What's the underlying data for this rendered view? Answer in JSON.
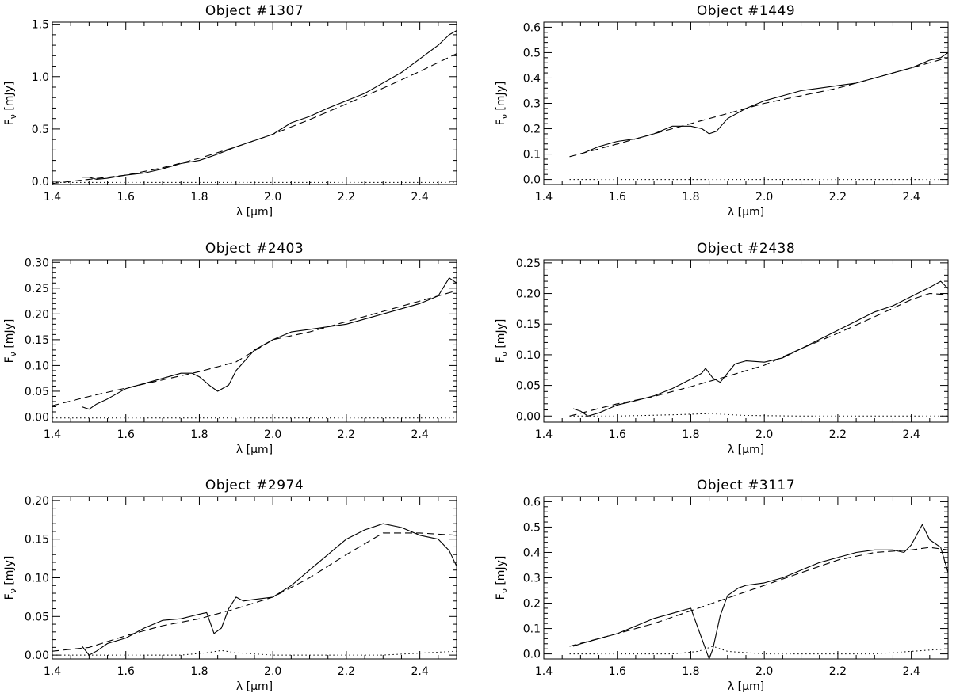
{
  "chart_data": [
    {
      "type": "line",
      "title": "Object #1307",
      "xlabel": "λ [μm]",
      "ylabel": "F_ν [mJy]",
      "xlim": [
        1.4,
        2.5
      ],
      "ylim": [
        -0.03,
        1.52
      ],
      "xticks": [
        "1.4",
        "1.6",
        "1.8",
        "2.0",
        "2.2",
        "2.4"
      ],
      "yticks": [
        "0.0",
        "0.5",
        "1.0",
        "1.5"
      ],
      "series": [
        {
          "style": "solid",
          "x": [
            1.48,
            1.5,
            1.52,
            1.55,
            1.6,
            1.65,
            1.7,
            1.75,
            1.8,
            1.85,
            1.9,
            1.95,
            2.0,
            2.05,
            2.1,
            2.15,
            2.2,
            2.25,
            2.3,
            2.35,
            2.4,
            2.45,
            2.48,
            2.5
          ],
          "y": [
            0.04,
            0.04,
            0.02,
            0.03,
            0.06,
            0.08,
            0.12,
            0.17,
            0.2,
            0.26,
            0.33,
            0.39,
            0.45,
            0.56,
            0.62,
            0.7,
            0.77,
            0.84,
            0.94,
            1.04,
            1.17,
            1.3,
            1.4,
            1.44
          ]
        },
        {
          "style": "dashed",
          "x": [
            1.4,
            1.5,
            1.6,
            1.7,
            1.8,
            1.9,
            2.0,
            2.1,
            2.2,
            2.3,
            2.4,
            2.5
          ],
          "y": [
            -0.02,
            0.02,
            0.06,
            0.13,
            0.22,
            0.33,
            0.45,
            0.59,
            0.74,
            0.89,
            1.05,
            1.22
          ]
        },
        {
          "style": "dotted",
          "x": [
            1.4,
            2.5
          ],
          "y": [
            -0.01,
            -0.01
          ]
        }
      ]
    },
    {
      "type": "line",
      "title": "Object #1449",
      "xlabel": "λ [μm]",
      "ylabel": "F_ν [mJy]",
      "xlim": [
        1.4,
        2.5
      ],
      "ylim": [
        -0.02,
        0.62
      ],
      "xticks": [
        "1.4",
        "1.6",
        "1.8",
        "2.0",
        "2.2",
        "2.4"
      ],
      "yticks": [
        "0.0",
        "0.1",
        "0.2",
        "0.3",
        "0.4",
        "0.5",
        "0.6"
      ],
      "series": [
        {
          "style": "solid",
          "x": [
            1.5,
            1.55,
            1.6,
            1.65,
            1.7,
            1.75,
            1.8,
            1.83,
            1.85,
            1.87,
            1.9,
            1.95,
            2.0,
            2.05,
            2.1,
            2.15,
            2.2,
            2.25,
            2.3,
            2.35,
            2.4,
            2.45,
            2.48,
            2.5
          ],
          "y": [
            0.1,
            0.13,
            0.15,
            0.16,
            0.18,
            0.21,
            0.21,
            0.2,
            0.18,
            0.19,
            0.24,
            0.28,
            0.31,
            0.33,
            0.35,
            0.36,
            0.37,
            0.38,
            0.4,
            0.42,
            0.44,
            0.47,
            0.48,
            0.5
          ]
        },
        {
          "style": "dashed",
          "x": [
            1.47,
            1.6,
            1.7,
            1.8,
            1.9,
            2.0,
            2.1,
            2.2,
            2.3,
            2.4,
            2.5
          ],
          "y": [
            0.09,
            0.14,
            0.18,
            0.22,
            0.26,
            0.3,
            0.33,
            0.36,
            0.4,
            0.44,
            0.48
          ]
        },
        {
          "style": "dotted",
          "x": [
            1.47,
            2.5
          ],
          "y": [
            0.0,
            0.0
          ]
        }
      ]
    },
    {
      "type": "line",
      "title": "Object #2403",
      "xlabel": "λ [μm]",
      "ylabel": "F_ν [mJy]",
      "xlim": [
        1.4,
        2.5
      ],
      "ylim": [
        -0.01,
        0.305
      ],
      "xticks": [
        "1.4",
        "1.6",
        "1.8",
        "2.0",
        "2.2",
        "2.4"
      ],
      "yticks": [
        "0.00",
        "0.05",
        "0.10",
        "0.15",
        "0.20",
        "0.25",
        "0.30"
      ],
      "series": [
        {
          "style": "solid",
          "x": [
            1.48,
            1.5,
            1.52,
            1.55,
            1.6,
            1.65,
            1.7,
            1.75,
            1.78,
            1.8,
            1.83,
            1.85,
            1.88,
            1.9,
            1.95,
            2.0,
            2.05,
            2.1,
            2.15,
            2.2,
            2.25,
            2.3,
            2.35,
            2.4,
            2.45,
            2.48,
            2.5
          ],
          "y": [
            0.02,
            0.015,
            0.025,
            0.035,
            0.055,
            0.065,
            0.075,
            0.085,
            0.085,
            0.078,
            0.06,
            0.05,
            0.062,
            0.09,
            0.13,
            0.15,
            0.165,
            0.17,
            0.175,
            0.18,
            0.19,
            0.2,
            0.21,
            0.22,
            0.235,
            0.27,
            0.26
          ]
        },
        {
          "style": "dashed",
          "x": [
            1.4,
            1.5,
            1.6,
            1.7,
            1.8,
            1.9,
            2.0,
            2.1,
            2.2,
            2.3,
            2.4,
            2.5
          ],
          "y": [
            0.022,
            0.04,
            0.056,
            0.072,
            0.088,
            0.107,
            0.15,
            0.165,
            0.185,
            0.205,
            0.225,
            0.245
          ]
        },
        {
          "style": "dotted",
          "x": [
            1.4,
            2.5
          ],
          "y": [
            -0.002,
            -0.002
          ]
        }
      ]
    },
    {
      "type": "line",
      "title": "Object #2438",
      "xlabel": "λ [μm]",
      "ylabel": "F_ν [mJy]",
      "xlim": [
        1.4,
        2.5
      ],
      "ylim": [
        -0.01,
        0.255
      ],
      "xticks": [
        "1.4",
        "1.6",
        "1.8",
        "2.0",
        "2.2",
        "2.4"
      ],
      "yticks": [
        "0.00",
        "0.05",
        "0.10",
        "0.15",
        "0.20",
        "0.25"
      ],
      "series": [
        {
          "style": "solid",
          "x": [
            1.48,
            1.5,
            1.52,
            1.55,
            1.6,
            1.65,
            1.7,
            1.75,
            1.8,
            1.83,
            1.84,
            1.86,
            1.88,
            1.9,
            1.92,
            1.95,
            2.0,
            2.05,
            2.1,
            2.15,
            2.2,
            2.25,
            2.3,
            2.35,
            2.4,
            2.45,
            2.48,
            2.5
          ],
          "y": [
            0.012,
            0.008,
            0.0,
            0.005,
            0.018,
            0.025,
            0.033,
            0.045,
            0.06,
            0.07,
            0.078,
            0.062,
            0.055,
            0.07,
            0.085,
            0.09,
            0.088,
            0.095,
            0.11,
            0.125,
            0.14,
            0.155,
            0.17,
            0.18,
            0.195,
            0.21,
            0.22,
            0.208
          ]
        },
        {
          "style": "dashed",
          "x": [
            1.47,
            1.6,
            1.7,
            1.8,
            1.9,
            2.0,
            2.1,
            2.2,
            2.3,
            2.4,
            2.45,
            2.5
          ],
          "y": [
            0.0,
            0.02,
            0.032,
            0.048,
            0.065,
            0.083,
            0.11,
            0.135,
            0.162,
            0.19,
            0.2,
            0.198
          ]
        },
        {
          "style": "dotted",
          "x": [
            1.47,
            1.6,
            1.75,
            1.85,
            1.95,
            2.1,
            2.3,
            2.5
          ],
          "y": [
            0.0,
            0.0,
            0.002,
            0.004,
            0.001,
            0.0,
            0.0,
            0.0
          ]
        }
      ]
    },
    {
      "type": "line",
      "title": "Object #2974",
      "xlabel": "λ [μm]",
      "ylabel": "F_ν [mJy]",
      "xlim": [
        1.4,
        2.5
      ],
      "ylim": [
        -0.005,
        0.205
      ],
      "xticks": [
        "1.4",
        "1.6",
        "1.8",
        "2.0",
        "2.2",
        "2.4"
      ],
      "yticks": [
        "0.00",
        "0.05",
        "0.10",
        "0.15",
        "0.20"
      ],
      "series": [
        {
          "style": "solid",
          "x": [
            1.48,
            1.5,
            1.52,
            1.55,
            1.6,
            1.65,
            1.7,
            1.75,
            1.8,
            1.82,
            1.84,
            1.86,
            1.88,
            1.9,
            1.92,
            1.95,
            2.0,
            2.05,
            2.1,
            2.15,
            2.2,
            2.25,
            2.3,
            2.35,
            2.4,
            2.45,
            2.48,
            2.5
          ],
          "y": [
            0.012,
            0.0,
            0.005,
            0.015,
            0.022,
            0.035,
            0.045,
            0.047,
            0.053,
            0.055,
            0.028,
            0.035,
            0.06,
            0.075,
            0.07,
            0.072,
            0.075,
            0.09,
            0.11,
            0.13,
            0.15,
            0.162,
            0.17,
            0.165,
            0.155,
            0.15,
            0.135,
            0.115
          ]
        },
        {
          "style": "dashed",
          "x": [
            1.4,
            1.5,
            1.6,
            1.7,
            1.8,
            1.9,
            2.0,
            2.1,
            2.2,
            2.3,
            2.4,
            2.5
          ],
          "y": [
            0.005,
            0.01,
            0.025,
            0.038,
            0.047,
            0.06,
            0.075,
            0.1,
            0.13,
            0.158,
            0.158,
            0.155
          ]
        },
        {
          "style": "dotted",
          "x": [
            1.4,
            1.75,
            1.82,
            1.86,
            1.9,
            2.0,
            2.3,
            2.5
          ],
          "y": [
            0.0,
            0.0,
            0.003,
            0.006,
            0.003,
            0.0,
            0.0,
            0.005
          ]
        }
      ]
    },
    {
      "type": "line",
      "title": "Object #3117",
      "xlabel": "λ [μm]",
      "ylabel": "F_ν [mJy]",
      "xlim": [
        1.4,
        2.5
      ],
      "ylim": [
        -0.02,
        0.62
      ],
      "xticks": [
        "1.4",
        "1.6",
        "1.8",
        "2.0",
        "2.2",
        "2.4"
      ],
      "yticks": [
        "0.0",
        "0.1",
        "0.2",
        "0.3",
        "0.4",
        "0.5",
        "0.6"
      ],
      "series": [
        {
          "style": "solid",
          "x": [
            1.48,
            1.5,
            1.55,
            1.6,
            1.65,
            1.7,
            1.75,
            1.8,
            1.82,
            1.84,
            1.85,
            1.86,
            1.88,
            1.9,
            1.93,
            1.95,
            2.0,
            2.05,
            2.1,
            2.15,
            2.2,
            2.25,
            2.3,
            2.35,
            2.38,
            2.4,
            2.43,
            2.45,
            2.48,
            2.5
          ],
          "y": [
            0.03,
            0.04,
            0.06,
            0.08,
            0.11,
            0.14,
            0.16,
            0.18,
            0.1,
            0.02,
            -0.02,
            0.02,
            0.15,
            0.23,
            0.26,
            0.27,
            0.28,
            0.3,
            0.33,
            0.36,
            0.38,
            0.4,
            0.41,
            0.41,
            0.4,
            0.43,
            0.51,
            0.45,
            0.42,
            0.32
          ]
        },
        {
          "style": "dashed",
          "x": [
            1.47,
            1.6,
            1.7,
            1.8,
            1.9,
            2.0,
            2.1,
            2.2,
            2.3,
            2.4,
            2.45,
            2.5
          ],
          "y": [
            0.03,
            0.08,
            0.12,
            0.17,
            0.22,
            0.27,
            0.32,
            0.37,
            0.4,
            0.41,
            0.42,
            0.41
          ]
        },
        {
          "style": "dotted",
          "x": [
            1.47,
            1.75,
            1.82,
            1.86,
            1.9,
            2.0,
            2.3,
            2.5
          ],
          "y": [
            0.0,
            0.0,
            0.01,
            0.03,
            0.01,
            0.0,
            0.0,
            0.02
          ]
        }
      ]
    }
  ]
}
